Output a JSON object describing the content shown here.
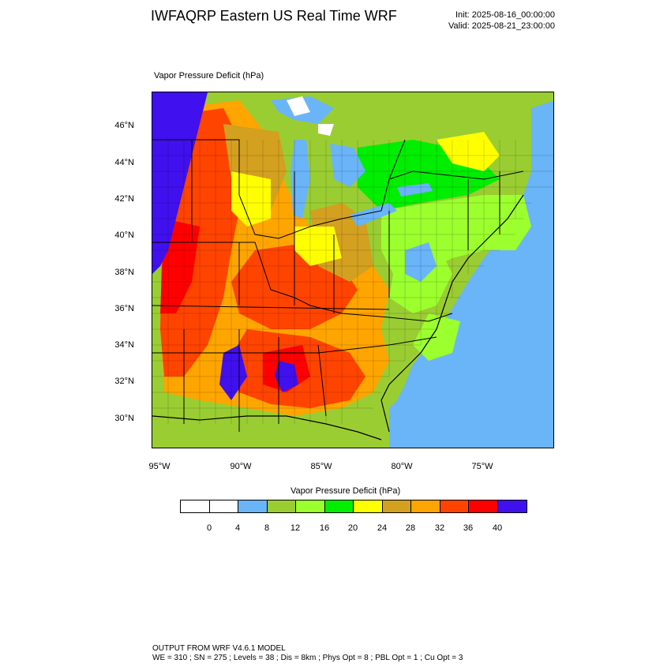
{
  "header": {
    "title": "IWFAQRP Eastern US Real Time WRF",
    "init": "Init: 2025-08-16_00:00:00",
    "valid": "Valid: 2025-08-21_23:00:00"
  },
  "field": {
    "title": "Vapor Pressure Deficit   (hPa)"
  },
  "map": {
    "lat_labels": [
      "46°N",
      "44°N",
      "42°N",
      "40°N",
      "38°N",
      "36°N",
      "34°N",
      "32°N",
      "30°N"
    ],
    "lon_labels": [
      "95°W",
      "90°W",
      "85°W",
      "80°W",
      "75°W"
    ],
    "colors": {
      "ocean": "#6ab4f8",
      "lake": "#6ab4f8",
      "snow_white": "#ffffff",
      "hot": "#ff0000",
      "orange_red": "#ff4400",
      "orange": "#ffa500",
      "tan": "#d3a020",
      "yellow": "#ffff00",
      "green": "#00ee00",
      "lime": "#9cff2e",
      "olive": "#9acd32",
      "purple": "#4010ee"
    }
  },
  "colorbar": {
    "title": "Vapor Pressure Deficit  (hPa)",
    "colors": [
      "#ffffff",
      "#ffffff",
      "#6ab4f8",
      "#9acd32",
      "#9cff2e",
      "#00ee00",
      "#ffff00",
      "#d3a020",
      "#ffa500",
      "#ff4400",
      "#ff0000",
      "#4010ee"
    ],
    "labels": [
      "0",
      "4",
      "8",
      "12",
      "16",
      "20",
      "24",
      "28",
      "32",
      "36",
      "40"
    ]
  },
  "footer": {
    "line1": "OUTPUT FROM WRF V4.6.1 MODEL",
    "line2": "WE = 310 ; SN = 275 ; Levels = 38 ; Dis = 8km ; Phys Opt = 8 ; PBL Opt = 1 ; Cu Opt = 3"
  }
}
